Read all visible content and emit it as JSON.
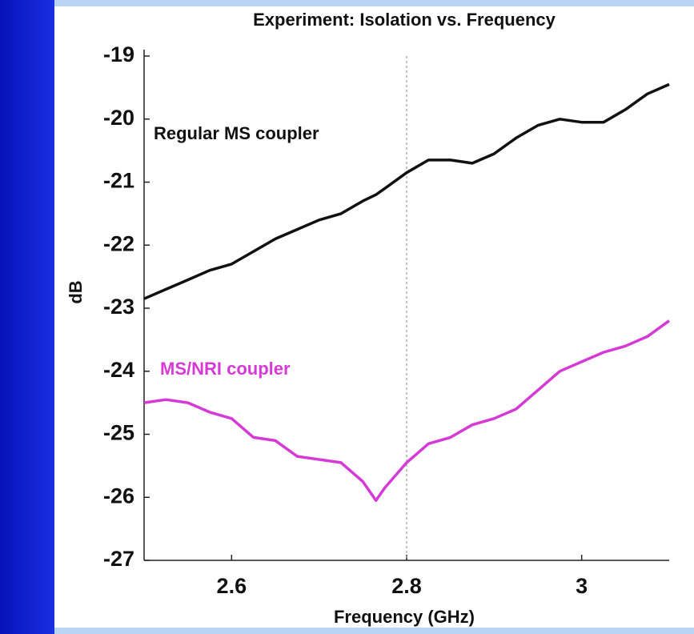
{
  "chart_data": {
    "type": "line",
    "title": "Experiment: Isolation vs. Frequency",
    "x_label": "Frequency (GHz)",
    "y_label": "dB",
    "x": [
      2.5,
      2.525,
      2.55,
      2.575,
      2.6,
      2.625,
      2.65,
      2.675,
      2.7,
      2.725,
      2.75,
      2.765,
      2.775,
      2.8,
      2.825,
      2.85,
      2.875,
      2.9,
      2.925,
      2.95,
      2.975,
      3.0,
      3.025,
      3.05,
      3.075,
      3.1
    ],
    "series": [
      {
        "name": "Regular MS coupler",
        "color": "#111111",
        "values": [
          -22.85,
          -22.7,
          -22.55,
          -22.4,
          -22.3,
          -22.1,
          -21.9,
          -21.75,
          -21.6,
          -21.5,
          -21.3,
          -21.2,
          -21.1,
          -20.85,
          -20.65,
          -20.65,
          -20.7,
          -20.55,
          -20.3,
          -20.1,
          -20.0,
          -20.05,
          -20.05,
          -19.85,
          -19.6,
          -19.45
        ]
      },
      {
        "name": "MS/NRI coupler",
        "color": "#d63ad6",
        "values": [
          -24.5,
          -24.45,
          -24.5,
          -24.65,
          -24.75,
          -25.05,
          -25.1,
          -25.35,
          -25.4,
          -25.45,
          -25.75,
          -26.05,
          -25.85,
          -25.45,
          -25.15,
          -25.05,
          -24.85,
          -24.75,
          -24.6,
          -24.3,
          -24.0,
          -23.85,
          -23.7,
          -23.6,
          -23.45,
          -23.2
        ]
      }
    ],
    "xlim": [
      2.5,
      3.1
    ],
    "xticks": [
      2.6,
      2.8,
      3
    ],
    "ylim": [
      -27,
      -19
    ],
    "yticks": [
      -27,
      -26,
      -25,
      -24,
      -23,
      -22,
      -21,
      -20,
      -19
    ],
    "vline": 2.8
  }
}
